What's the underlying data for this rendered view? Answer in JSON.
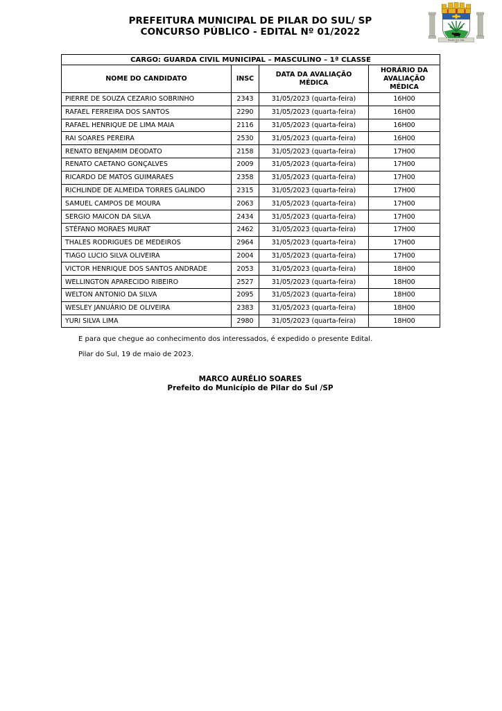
{
  "header": {
    "title_line1": "PREFEITURA MUNICIPAL DE PILAR DO SUL/ SP",
    "title_line2": "CONCURSO PÚBLICO - EDITAL Nº 01/2022",
    "logo": {
      "description": "municipal coat of arms of Pilar do Sul",
      "banner_text": "PILAR DO SUL",
      "colors": {
        "crown_gold": "#e6b31e",
        "crown_red": "#cc2a1e",
        "chief_blue": "#2b5ea7",
        "cross_gold": "#f2c71d",
        "field_white": "#ffffff",
        "mount_green": "#2f9e41",
        "bush_green": "#1c7a2d",
        "bull_black": "#111111",
        "column_gray": "#b9b9ad"
      }
    }
  },
  "table": {
    "cargo_header": "CARGO: GUARDA CIVIL MUNICIPAL – MASCULINO – 1ª CLASSE",
    "columns": [
      "NOME DO CANDIDATO",
      "INSC",
      "DATA DA AVALIAÇÃO MÉDICA",
      "HORÁRIO DA AVALIAÇÃO MÉDICA"
    ],
    "rows": [
      [
        "PIERRE DE SOUZA CEZARIO SOBRINHO",
        "2343",
        "31/05/2023 (quarta-feira)",
        "16H00"
      ],
      [
        "RAFAEL FERREIRA DOS SANTOS",
        "2290",
        "31/05/2023 (quarta-feira)",
        "16H00"
      ],
      [
        "RAFAEL HENRIQUE DE LIMA MAIA",
        "2116",
        "31/05/2023 (quarta-feira)",
        "16H00"
      ],
      [
        "RAI SOARES PEREIRA",
        "2530",
        "31/05/2023 (quarta-feira)",
        "16H00"
      ],
      [
        "RENATO BENJAMIM DEODATO",
        "2158",
        "31/05/2023 (quarta-feira)",
        "17H00"
      ],
      [
        "RENATO CAETANO GONÇALVES",
        "2009",
        "31/05/2023 (quarta-feira)",
        "17H00"
      ],
      [
        "RICARDO DE MATOS GUIMARAES",
        "2358",
        "31/05/2023 (quarta-feira)",
        "17H00"
      ],
      [
        "RICHLINDE DE ALMEIDA TORRES GALINDO",
        "2315",
        "31/05/2023 (quarta-feira)",
        "17H00"
      ],
      [
        "SAMUEL CAMPOS DE MOURA",
        "2063",
        "31/05/2023 (quarta-feira)",
        "17H00"
      ],
      [
        "SERGIO MAICON DA SILVA",
        "2434",
        "31/05/2023 (quarta-feira)",
        "17H00"
      ],
      [
        "STÉFANO MORAES MURAT",
        "2462",
        "31/05/2023 (quarta-feira)",
        "17H00"
      ],
      [
        "THALES RODRIGUES DE MEDEIROS",
        "2964",
        "31/05/2023 (quarta-feira)",
        "17H00"
      ],
      [
        "TIAGO LUCIO SILVA OLIVEIRA",
        "2004",
        "31/05/2023 (quarta-feira)",
        "17H00"
      ],
      [
        "VICTOR HENRIQUE DOS SANTOS ANDRADE",
        "2053",
        "31/05/2023 (quarta-feira)",
        "18H00"
      ],
      [
        "WELLINGTON APARECIDO RIBEIRO",
        "2527",
        "31/05/2023 (quarta-feira)",
        "18H00"
      ],
      [
        "WELTON ANTONIO DA SILVA",
        "2095",
        "31/05/2023 (quarta-feira)",
        "18H00"
      ],
      [
        "WESLEY JANUÁRIO DE OLIVEIRA",
        "2383",
        "31/05/2023 (quarta-feira)",
        "18H00"
      ],
      [
        "YURI SILVA LIMA",
        "2980",
        "31/05/2023 (quarta-feira)",
        "18H00"
      ]
    ]
  },
  "footer": {
    "closing_text": "E para que chegue ao conhecimento dos interessados, é expedido o presente Edital.",
    "date_line": "Pilar do Sul, 19 de maio de 2023.",
    "signature_name": "MARCO AURÉLIO SOARES",
    "signature_title": "Prefeito do Município de Pilar do Sul /SP"
  }
}
